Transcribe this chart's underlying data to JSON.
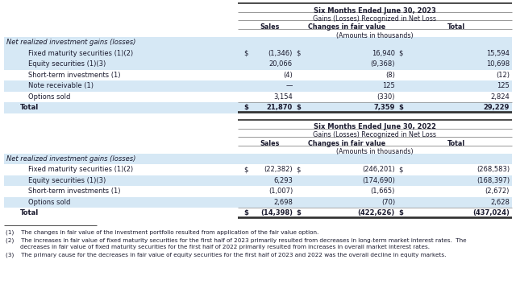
{
  "title_2023": "Six Months Ended June 30, 2023",
  "subtitle_2023": "Gains (Losses) Recognized in Net Loss",
  "title_2022": "Six Months Ended June 30, 2022",
  "subtitle_2022": "Gains (Losses) Recognized in Net Loss",
  "col_headers": [
    "Sales",
    "Changes in fair value",
    "Total"
  ],
  "amounts_label": "(Amounts in thousands)",
  "section_header": "Net realized investment gains (losses)",
  "rows_2023": [
    {
      "label": "Fixed maturity securities (1)(2)",
      "dollar_sales": "$",
      "sales": "(1,346)",
      "dollar_cfv": "$",
      "cfv": "16,940",
      "dollar_total": "$",
      "total": "15,594",
      "shaded": true
    },
    {
      "label": "Equity securities (1)(3)",
      "dollar_sales": "",
      "sales": "20,066",
      "dollar_cfv": "",
      "cfv": "(9,368)",
      "dollar_total": "",
      "total": "10,698",
      "shaded": true
    },
    {
      "label": "Short-term investments (1)",
      "dollar_sales": "",
      "sales": "(4)",
      "dollar_cfv": "",
      "cfv": "(8)",
      "dollar_total": "",
      "total": "(12)",
      "shaded": false
    },
    {
      "label": "Note receivable (1)",
      "dollar_sales": "",
      "sales": "—",
      "dollar_cfv": "",
      "cfv": "125",
      "dollar_total": "",
      "total": "125",
      "shaded": true
    },
    {
      "label": "Options sold",
      "dollar_sales": "",
      "sales": "3,154",
      "dollar_cfv": "",
      "cfv": "(330)",
      "dollar_total": "",
      "total": "2,824",
      "shaded": false
    },
    {
      "label": "Total",
      "dollar_sales": "$",
      "sales": "21,870",
      "dollar_cfv": "$",
      "cfv": "7,359",
      "dollar_total": "$",
      "total": "29,229",
      "shaded": true,
      "bold": true
    }
  ],
  "rows_2022": [
    {
      "label": "Fixed maturity securities (1)(2)",
      "dollar_sales": "$",
      "sales": "(22,382)",
      "dollar_cfv": "$",
      "cfv": "(246,201)",
      "dollar_total": "$",
      "total": "(268,583)",
      "shaded": false
    },
    {
      "label": "Equity securities (1)(3)",
      "dollar_sales": "",
      "sales": "6,293",
      "dollar_cfv": "",
      "cfv": "(174,690)",
      "dollar_total": "",
      "total": "(168,397)",
      "shaded": true
    },
    {
      "label": "Short-term investments (1)",
      "dollar_sales": "",
      "sales": "(1,007)",
      "dollar_cfv": "",
      "cfv": "(1,665)",
      "dollar_total": "",
      "total": "(2,672)",
      "shaded": false
    },
    {
      "label": "Options sold",
      "dollar_sales": "",
      "sales": "2,698",
      "dollar_cfv": "",
      "cfv": "(70)",
      "dollar_total": "",
      "total": "2,628",
      "shaded": true
    },
    {
      "label": "Total",
      "dollar_sales": "$",
      "sales": "(14,398)",
      "dollar_cfv": "$",
      "cfv": "(422,626)",
      "dollar_total": "$",
      "total": "(437,024)",
      "shaded": false,
      "bold": true
    }
  ],
  "shaded_color": "#d6e8f5",
  "bg_color": "#ffffff",
  "text_color": "#1a1a2e",
  "dark_line": "#2c2c2c",
  "thin_line": "#888888",
  "footnote_1": "(1)    The changes in fair value of the investment portfolio resulted from application of the fair value option.",
  "footnote_2a": "(2)    The increases in fair value of fixed maturity securities for the first half of 2023 primarily resulted from decreases in long-term market interest rates.  The",
  "footnote_2b": "        decreases in fair value of fixed maturity securities for the first half of 2022 primarily resulted from increases in overall market interest rates.",
  "footnote_3": "(3)    The primary cause for the decreases in fair value of equity securities for the first half of 2023 and 2022 was the overall decline in equity markets."
}
